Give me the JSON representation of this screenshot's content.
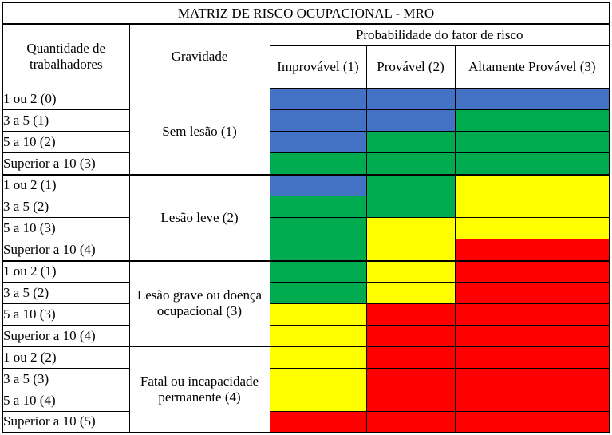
{
  "chart_data": {
    "type": "heatmap",
    "title": "MATRIZ DE RISCO OCUPACIONAL - MRO",
    "headers": {
      "workers": "Quantidade de trabalhadores",
      "severity": "Gravidade",
      "probability": "Probabilidade do fator de risco"
    },
    "probability_levels": [
      "Improvável (1)",
      "Provável (2)",
      "Altamente Provável (3)"
    ],
    "color_palette": {
      "blue": "#4472C4",
      "green": "#00AC4F",
      "yellow": "#FFFF00",
      "red": "#FE0000"
    },
    "groups": [
      {
        "severity": "Sem lesão (1)",
        "rows": [
          {
            "workers": "1 ou 2 (0)",
            "risk": [
              "blue",
              "blue",
              "blue"
            ]
          },
          {
            "workers": "3 a 5 (1)",
            "risk": [
              "blue",
              "blue",
              "green"
            ]
          },
          {
            "workers": "5 a 10 (2)",
            "risk": [
              "blue",
              "green",
              "green"
            ]
          },
          {
            "workers": "Superior a 10 (3)",
            "risk": [
              "green",
              "green",
              "green"
            ]
          }
        ]
      },
      {
        "severity": "Lesão leve (2)",
        "rows": [
          {
            "workers": "1 ou 2 (1)",
            "risk": [
              "blue",
              "green",
              "yellow"
            ]
          },
          {
            "workers": "3 a 5 (2)",
            "risk": [
              "green",
              "green",
              "yellow"
            ]
          },
          {
            "workers": "5 a 10 (3)",
            "risk": [
              "green",
              "yellow",
              "yellow"
            ]
          },
          {
            "workers": "Superior a 10 (4)",
            "risk": [
              "green",
              "yellow",
              "red"
            ]
          }
        ]
      },
      {
        "severity": "Lesão grave ou doença ocupacional (3)",
        "rows": [
          {
            "workers": "1 ou 2 (1)",
            "risk": [
              "green",
              "yellow",
              "red"
            ]
          },
          {
            "workers": "3 a 5 (2)",
            "risk": [
              "green",
              "yellow",
              "red"
            ]
          },
          {
            "workers": "5 a 10 (3)",
            "risk": [
              "yellow",
              "red",
              "red"
            ]
          },
          {
            "workers": "Superior a 10 (4)",
            "risk": [
              "yellow",
              "red",
              "red"
            ]
          }
        ]
      },
      {
        "severity": "Fatal ou incapacidade permanente (4)",
        "rows": [
          {
            "workers": "1 ou 2 (2)",
            "risk": [
              "yellow",
              "red",
              "red"
            ]
          },
          {
            "workers": "3 a 5 (3)",
            "risk": [
              "yellow",
              "red",
              "red"
            ]
          },
          {
            "workers": "5 a 10 (4)",
            "risk": [
              "yellow",
              "red",
              "red"
            ]
          },
          {
            "workers": "Superior a 10 (5)",
            "risk": [
              "red",
              "red",
              "red"
            ]
          }
        ]
      }
    ]
  }
}
